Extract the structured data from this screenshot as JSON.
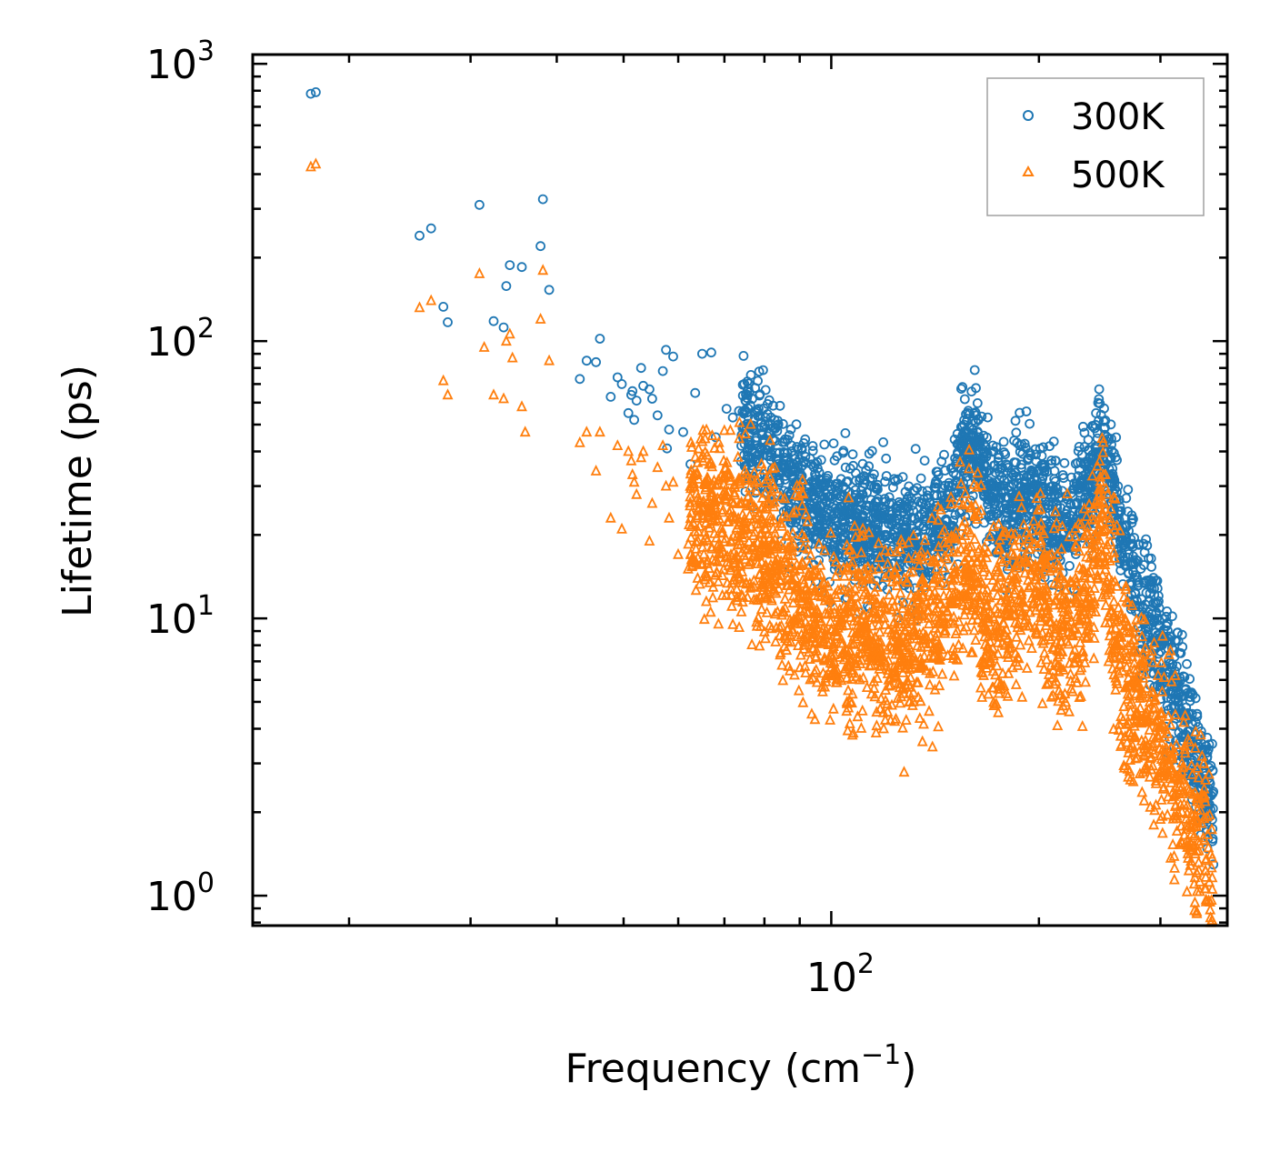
{
  "chart_data": {
    "type": "scatter",
    "title": "",
    "xlabel": "Frequency (cm",
    "xlabel_exponent": "−1",
    "xlabel_suffix": ")",
    "ylabel": "Lifetime (ps)",
    "xscale": "log",
    "yscale": "log",
    "xlim": [
      14.5,
      375
    ],
    "ylim": [
      0.78,
      1080
    ],
    "x_ticks": [
      {
        "base": "10",
        "exp": "2",
        "value": 100
      }
    ],
    "y_ticks": [
      {
        "base": "10",
        "exp": "0",
        "value": 1
      },
      {
        "base": "10",
        "exp": "1",
        "value": 10
      },
      {
        "base": "10",
        "exp": "2",
        "value": 100
      },
      {
        "base": "10",
        "exp": "3",
        "value": 1000
      }
    ],
    "legend_position": "top-right",
    "colors": {
      "series_300K": "#1f77b4",
      "series_500K": "#ff7f0e",
      "axes": "#000000",
      "legend_border": "#a0a0a0"
    },
    "series": [
      {
        "name": "300K",
        "marker": "circle",
        "x": [
          17.6,
          17.9,
          25.3,
          26.3,
          27.4,
          27.8,
          30.9,
          32.4,
          33.5,
          33.8,
          34.2,
          35.6,
          37.9,
          38.2,
          39.0,
          43.2,
          44.2,
          45.6,
          46.2,
          47.9,
          49.0,
          49.7,
          50.8,
          51.3,
          51.5,
          51.8,
          52.2,
          53.0,
          53.4,
          54.5,
          55.0,
          56.0,
          57.0,
          57.6,
          57.8,
          58.2,
          59.0,
          61.0,
          62.5,
          63.5,
          65.0,
          67.0,
          68.0,
          70.5,
          72.0,
          73.5,
          74.5
        ],
        "y": [
          780,
          790,
          240,
          255,
          133,
          117,
          310,
          118,
          112,
          158,
          188,
          185,
          220,
          325,
          153,
          73,
          85,
          84,
          102,
          63,
          74,
          70,
          55,
          64,
          66,
          52,
          61,
          80,
          69,
          67,
          62,
          54,
          78,
          93,
          41,
          48,
          88,
          47,
          36,
          65,
          90,
          91,
          45,
          57,
          53,
          56,
          45
        ],
        "cloud_points": [
          [
            74,
            50
          ],
          [
            80,
            42
          ],
          [
            85,
            34
          ],
          [
            90,
            28
          ],
          [
            95,
            25
          ],
          [
            100,
            24
          ],
          [
            110,
            22
          ],
          [
            120,
            21
          ],
          [
            130,
            20
          ],
          [
            140,
            21
          ],
          [
            150,
            26
          ],
          [
            155,
            35
          ],
          [
            160,
            48
          ],
          [
            165,
            35
          ],
          [
            170,
            27
          ],
          [
            180,
            24
          ],
          [
            190,
            28
          ],
          [
            200,
            27
          ],
          [
            210,
            24
          ],
          [
            220,
            22
          ],
          [
            230,
            27
          ],
          [
            240,
            33
          ],
          [
            245,
            44
          ],
          [
            250,
            38
          ],
          [
            255,
            30
          ],
          [
            265,
            20
          ],
          [
            275,
            14
          ],
          [
            290,
            10
          ],
          [
            305,
            7
          ],
          [
            320,
            5.2
          ],
          [
            335,
            3.5
          ],
          [
            350,
            2.4
          ],
          [
            358,
            2.0
          ]
        ]
      },
      {
        "name": "500K",
        "marker": "triangle",
        "x": [
          17.6,
          17.9,
          25.3,
          26.3,
          27.4,
          27.8,
          30.9,
          31.4,
          32.4,
          33.5,
          33.8,
          34.2,
          34.5,
          35.6,
          36.0,
          37.9,
          38.2,
          39.0,
          43.2,
          44.2,
          45.6,
          46.2,
          47.9,
          49.0,
          49.7,
          50.8,
          51.3,
          51.5,
          51.8,
          52.2,
          53.0,
          53.4,
          54.5,
          55.0,
          56.0,
          57.0,
          57.6,
          58.2,
          59.0,
          60.0
        ],
        "y": [
          425,
          435,
          132,
          140,
          72,
          64,
          175,
          95,
          64,
          62,
          100,
          106,
          87,
          58,
          47,
          120,
          180,
          85,
          43,
          47,
          34,
          47,
          23,
          42,
          21,
          40,
          37,
          33,
          31,
          28,
          38,
          40,
          19,
          26,
          35,
          42,
          30,
          23,
          31,
          17
        ],
        "cloud_points": [
          [
            62,
            25
          ],
          [
            68,
            22
          ],
          [
            74,
            20
          ],
          [
            80,
            17
          ],
          [
            85,
            14
          ],
          [
            90,
            12
          ],
          [
            95,
            10
          ],
          [
            100,
            9
          ],
          [
            110,
            9.3
          ],
          [
            120,
            8.6
          ],
          [
            130,
            8.0
          ],
          [
            140,
            10
          ],
          [
            150,
            12
          ],
          [
            160,
            17
          ],
          [
            165,
            12
          ],
          [
            170,
            9
          ],
          [
            180,
            11
          ],
          [
            190,
            14
          ],
          [
            200,
            12
          ],
          [
            210,
            10
          ],
          [
            220,
            9.5
          ],
          [
            230,
            11
          ],
          [
            240,
            16
          ],
          [
            245,
            22
          ],
          [
            250,
            18
          ],
          [
            255,
            13
          ],
          [
            262,
            7
          ],
          [
            272,
            5
          ],
          [
            285,
            4.5
          ],
          [
            300,
            3.5
          ],
          [
            315,
            2.6
          ],
          [
            330,
            2.0
          ],
          [
            345,
            1.6
          ],
          [
            357,
            1.2
          ]
        ]
      }
    ]
  }
}
